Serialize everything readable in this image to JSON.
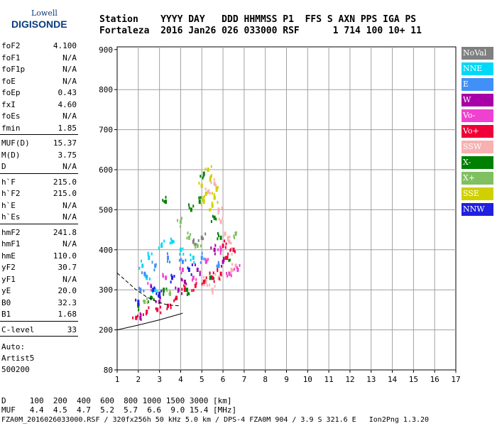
{
  "logo": {
    "line1": "Lowell",
    "line2": "DIGISONDE"
  },
  "header": {
    "line1": "Station    YYYY DAY   DDD HHMMSS P1  FFS S AXN PPS IGA PS",
    "line2": "Fortaleza  2016 Jan26 026 033000 RSF      1 714 100 10+ 11"
  },
  "params": [
    {
      "k": "foF2",
      "v": "4.100"
    },
    {
      "k": "foF1",
      "v": "N/A"
    },
    {
      "k": "foF1p",
      "v": "N/A"
    },
    {
      "k": "foE",
      "v": "N/A"
    },
    {
      "k": "foEp",
      "v": "0.43"
    },
    {
      "k": "fxI",
      "v": "4.60"
    },
    {
      "k": "foEs",
      "v": "N/A"
    },
    {
      "k": "fmin",
      "v": "1.85"
    },
    {
      "k": "MUF(D)",
      "v": "15.37"
    },
    {
      "k": "M(D)",
      "v": "3.75"
    },
    {
      "k": "D",
      "v": "N/A"
    },
    {
      "k": "h`F",
      "v": "215.0"
    },
    {
      "k": "h`F2",
      "v": "215.0"
    },
    {
      "k": "h`E",
      "v": "N/A"
    },
    {
      "k": "h`Es",
      "v": "N/A"
    },
    {
      "k": "hmF2",
      "v": "241.8"
    },
    {
      "k": "hmF1",
      "v": "N/A"
    },
    {
      "k": "hmE",
      "v": "110.0"
    },
    {
      "k": "yF2",
      "v": "30.7"
    },
    {
      "k": "yF1",
      "v": "N/A"
    },
    {
      "k": "yE",
      "v": "20.0"
    },
    {
      "k": "B0",
      "v": "32.3"
    },
    {
      "k": "B1",
      "v": "1.68"
    },
    {
      "k": "C-level",
      "v": "33"
    }
  ],
  "auto": [
    "Auto:",
    "Artist5",
    "500200"
  ],
  "legend": [
    {
      "label": "NoVal",
      "color": "#808080"
    },
    {
      "label": "NNE",
      "color": "#00d8f8"
    },
    {
      "label": "E",
      "color": "#4090f8"
    },
    {
      "label": "W",
      "color": "#a800a8"
    },
    {
      "label": "Vo-",
      "color": "#f040d0"
    },
    {
      "label": "Vo+",
      "color": "#f00038"
    },
    {
      "label": "SSW",
      "color": "#f8b0b0"
    },
    {
      "label": "X-",
      "color": "#008000"
    },
    {
      "label": "X+",
      "color": "#80c060"
    },
    {
      "label": "SSE",
      "color": "#d0d000"
    },
    {
      "label": "NNW",
      "color": "#2020e0"
    }
  ],
  "dmuf": {
    "d_line": "D     100  200  400  600  800 1000 1500 3000 [km]",
    "muf_line": "MUF   4.4  4.5  4.7  5.2  5.7  6.6  9.0 15.4 [MHz]"
  },
  "footer": "FZA0M_2016026033000.RSF / 320fx256h 50 kHz 5.0 km / DPS-4 FZA0M 904 / 3.9 S 321.6 E   Ion2Png 1.3.20",
  "chart_data": {
    "type": "scatter",
    "title": "",
    "xlabel": "",
    "ylabel": "",
    "xlim": [
      1,
      17
    ],
    "ylim": [
      80,
      900
    ],
    "x_ticks": [
      1,
      2,
      3,
      4,
      5,
      6,
      7,
      8,
      9,
      10,
      11,
      12,
      13,
      14,
      15,
      16,
      17
    ],
    "y_ticks": [
      80,
      200,
      300,
      400,
      500,
      600,
      700,
      800,
      900
    ],
    "grid": true,
    "series": [
      {
        "name": "SSE",
        "color": "#d0d000",
        "points": [
          [
            5.0,
            560
          ],
          [
            5.2,
            540
          ],
          [
            5.4,
            575
          ],
          [
            5.6,
            530
          ],
          [
            5.3,
            600
          ],
          [
            5.7,
            550
          ],
          [
            5.1,
            520
          ],
          [
            5.5,
            510
          ]
        ]
      },
      {
        "name": "SSW",
        "color": "#f8b0b0",
        "points": [
          [
            5.3,
            545
          ],
          [
            5.6,
            565
          ],
          [
            5.8,
            500
          ],
          [
            5.9,
            470
          ],
          [
            6.1,
            440
          ],
          [
            6.3,
            420
          ],
          [
            6.5,
            400
          ],
          [
            6.6,
            360
          ],
          [
            6.4,
            350
          ],
          [
            5.8,
            330
          ],
          [
            5.2,
            320
          ],
          [
            5.5,
            300
          ]
        ]
      },
      {
        "name": "X-",
        "color": "#008000",
        "points": [
          [
            3.3,
            520
          ],
          [
            4.5,
            500
          ],
          [
            4.9,
            520
          ],
          [
            5.1,
            590
          ],
          [
            5.6,
            480
          ],
          [
            5.9,
            430
          ],
          [
            2.0,
            260
          ],
          [
            2.6,
            280
          ],
          [
            3.2,
            300
          ],
          [
            4.3,
            300
          ],
          [
            5.4,
            330
          ],
          [
            6.2,
            380
          ]
        ]
      },
      {
        "name": "X+",
        "color": "#80c060",
        "points": [
          [
            4.0,
            470
          ],
          [
            4.4,
            430
          ],
          [
            4.8,
            410
          ],
          [
            6.6,
            440
          ],
          [
            2.3,
            270
          ],
          [
            3.5,
            290
          ]
        ]
      },
      {
        "name": "NNE",
        "color": "#00d8f8",
        "points": [
          [
            2.2,
            360
          ],
          [
            2.5,
            380
          ],
          [
            3.1,
            410
          ],
          [
            3.6,
            420
          ],
          [
            4.0,
            400
          ],
          [
            4.6,
            380
          ],
          [
            2.4,
            330
          ],
          [
            2.8,
            300
          ]
        ]
      },
      {
        "name": "E",
        "color": "#4090f8",
        "points": [
          [
            2.1,
            300
          ],
          [
            2.3,
            340
          ],
          [
            2.8,
            360
          ],
          [
            3.4,
            380
          ],
          [
            4.1,
            370
          ],
          [
            5.0,
            380
          ],
          [
            5.8,
            360
          ]
        ]
      },
      {
        "name": "W",
        "color": "#a800a8",
        "points": [
          [
            2.1,
            230
          ],
          [
            3.0,
            270
          ],
          [
            3.9,
            300
          ],
          [
            4.8,
            350
          ],
          [
            5.6,
            400
          ],
          [
            6.0,
            370
          ],
          [
            4.2,
            320
          ]
        ]
      },
      {
        "name": "Vo-",
        "color": "#f040d0",
        "points": [
          [
            2.6,
            310
          ],
          [
            3.3,
            330
          ],
          [
            4.1,
            350
          ],
          [
            4.6,
            330
          ],
          [
            5.2,
            370
          ],
          [
            5.9,
            400
          ],
          [
            6.3,
            340
          ],
          [
            6.7,
            350
          ]
        ]
      },
      {
        "name": "Vo+",
        "color": "#f00038",
        "points": [
          [
            1.9,
            230
          ],
          [
            2.4,
            245
          ],
          [
            2.9,
            250
          ],
          [
            3.4,
            260
          ],
          [
            3.8,
            280
          ],
          [
            4.2,
            300
          ],
          [
            4.7,
            310
          ],
          [
            5.1,
            320
          ],
          [
            5.5,
            330
          ],
          [
            5.9,
            340
          ],
          [
            6.2,
            380
          ],
          [
            6.5,
            400
          ],
          [
            6.0,
            410
          ]
        ]
      },
      {
        "name": "NNW",
        "color": "#2020e0",
        "points": [
          [
            2.0,
            270
          ],
          [
            2.7,
            300
          ],
          [
            3.6,
            330
          ],
          [
            4.4,
            350
          ],
          [
            3.0,
            290
          ]
        ]
      },
      {
        "name": "NoVal",
        "color": "#808080",
        "points": [
          [
            4.6,
            420
          ],
          [
            5.0,
            430
          ]
        ]
      }
    ],
    "trace_lines": [
      {
        "points": [
          [
            1.0,
            200
          ],
          [
            2.0,
            212
          ],
          [
            3.0,
            225
          ],
          [
            4.0,
            240
          ],
          [
            4.1,
            242
          ]
        ]
      },
      {
        "points": [
          [
            1.0,
            342
          ],
          [
            1.9,
            300
          ],
          [
            2.4,
            282
          ],
          [
            2.9,
            270
          ],
          [
            3.4,
            262
          ],
          [
            4.0,
            260
          ]
        ]
      }
    ]
  }
}
